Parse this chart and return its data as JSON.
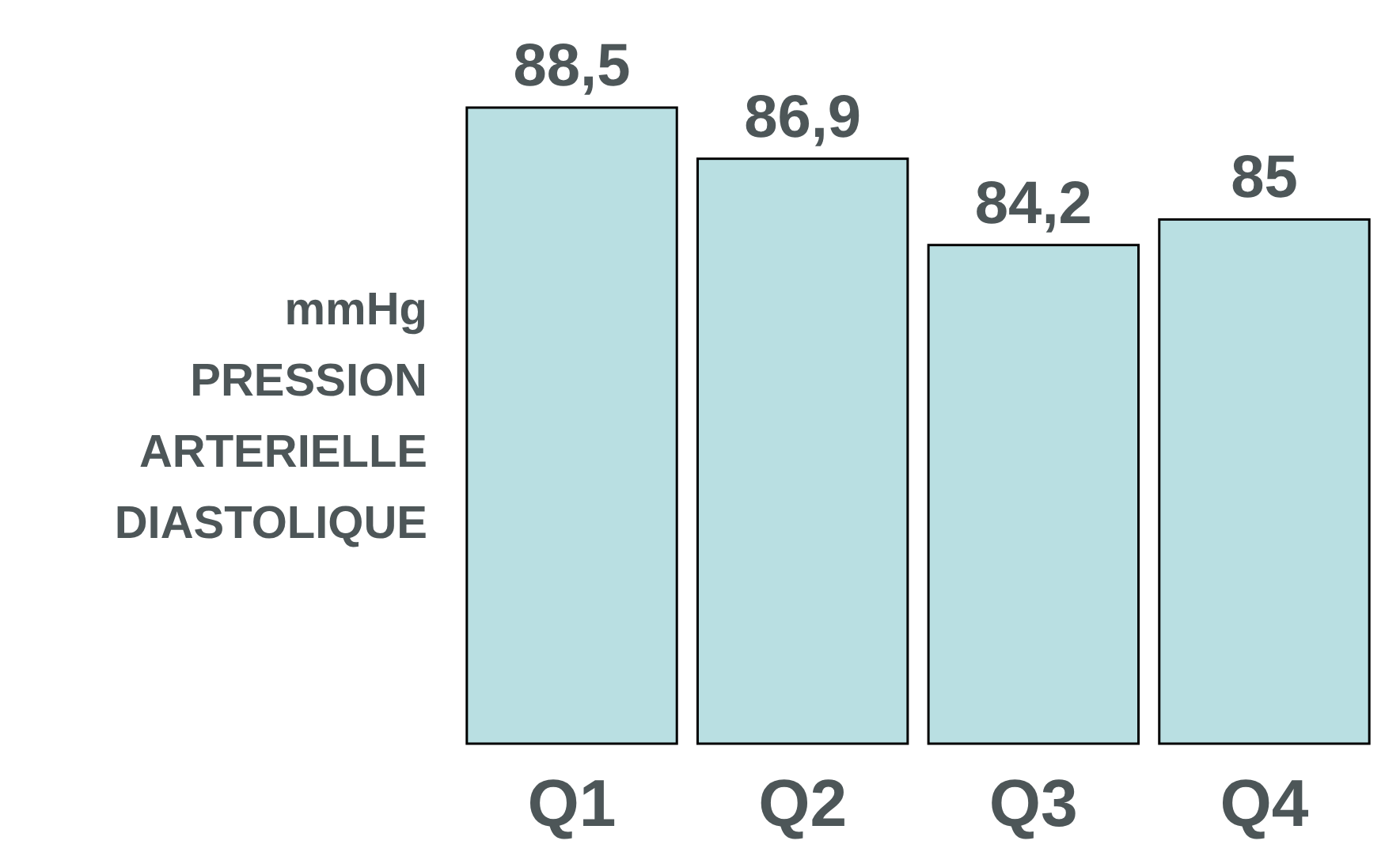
{
  "chart_data": {
    "type": "bar",
    "ylabel": "mmHg PRESSION ARTERIELLE DIASTOLIQUE",
    "categories": [
      "Q1",
      "Q2",
      "Q3",
      "Q4"
    ],
    "values": [
      88.5,
      86.9,
      84.2,
      85
    ],
    "value_labels": [
      "88,5",
      "86,9",
      "84,2",
      "85"
    ],
    "color": "#b9dfe2",
    "ylim": [
      68.6,
      88.5
    ],
    "tick_labels": "x"
  }
}
